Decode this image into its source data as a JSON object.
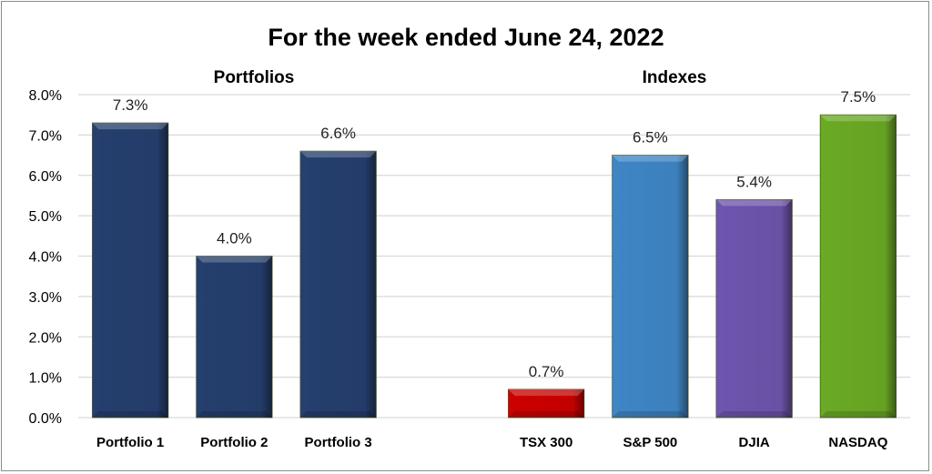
{
  "chart_data": {
    "type": "bar",
    "title": "For the week ended June 24, 2022",
    "groups": [
      {
        "label": "Portfolios",
        "categories": [
          "Portfolio 1",
          "Portfolio 2",
          "Portfolio 3"
        ]
      },
      {
        "label": "Indexes",
        "categories": [
          "TSX 300",
          "S&P 500",
          "DJIA",
          "NASDAQ"
        ]
      }
    ],
    "categories": [
      "Portfolio 1",
      "Portfolio 2",
      "Portfolio 3",
      "",
      "TSX 300",
      "S&P 500",
      "DJIA",
      "NASDAQ"
    ],
    "values": [
      7.3,
      4.0,
      6.6,
      null,
      0.7,
      6.5,
      5.4,
      7.5
    ],
    "data_labels": [
      "7.3%",
      "4.0%",
      "6.6%",
      "",
      "0.7%",
      "6.5%",
      "5.4%",
      "7.5%"
    ],
    "colors": [
      "#253f6e",
      "#253f6e",
      "#253f6e",
      "",
      "#cc0000",
      "#3f86c6",
      "#6e55ae",
      "#6aaa24"
    ],
    "yticks": [
      "0.0%",
      "1.0%",
      "2.0%",
      "3.0%",
      "4.0%",
      "5.0%",
      "6.0%",
      "7.0%",
      "8.0%"
    ],
    "ylim": [
      0,
      8
    ],
    "xlabel": "",
    "ylabel": "",
    "grid": true,
    "legend": "none"
  }
}
